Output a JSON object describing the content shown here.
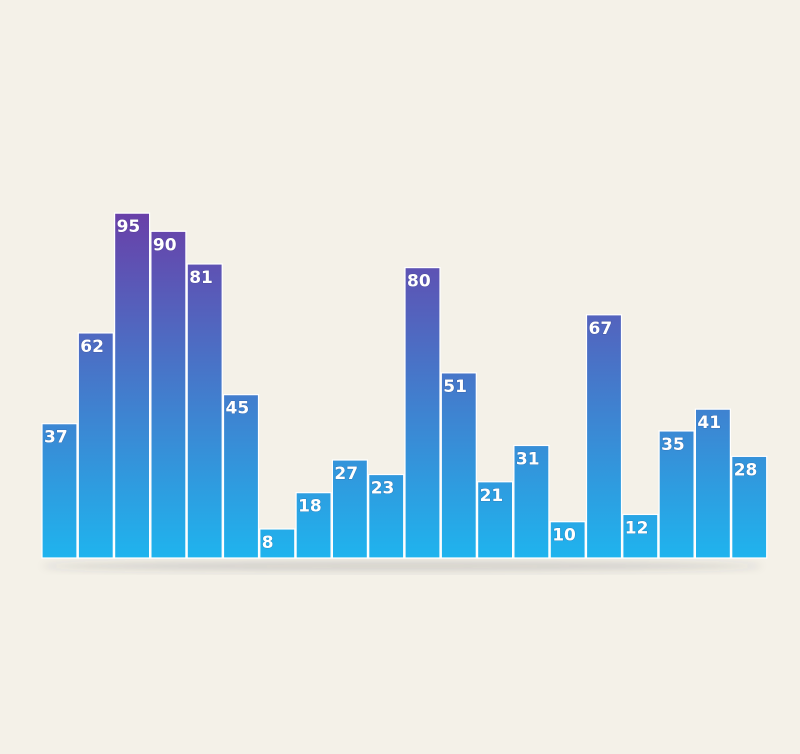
{
  "chart_data": {
    "type": "bar",
    "title": "",
    "xlabel": "",
    "ylabel": "",
    "ylim": [
      0,
      100
    ],
    "grid": false,
    "legend": "none",
    "values": [
      37,
      62,
      95,
      90,
      81,
      45,
      8,
      18,
      27,
      23,
      80,
      51,
      21,
      31,
      10,
      67,
      12,
      35,
      41,
      28
    ],
    "data_labels": [
      "37",
      "62",
      "95",
      "90",
      "81",
      "45",
      "8",
      "18",
      "27",
      "23",
      "80",
      "51",
      "21",
      "31",
      "10",
      "67",
      "12",
      "35",
      "41",
      "28"
    ],
    "colors": {
      "bar_top": "#6a3fa8",
      "bar_bottom": "#1fb4ee",
      "bar_edge": "#ffffff",
      "background": "#f4f1e8",
      "label": "#ffffff"
    }
  }
}
